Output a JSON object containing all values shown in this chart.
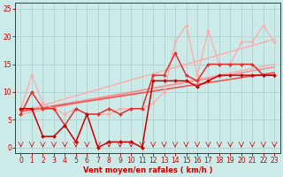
{
  "bg_color": "#cceae8",
  "grid_color": "#aad4d0",
  "xlabel": "Vent moyen/en rafales ( km/h )",
  "xlabel_color": "#cc0000",
  "tick_color": "#cc0000",
  "xlim": [
    -0.5,
    23.5
  ],
  "ylim": [
    -1,
    26
  ],
  "xticks": [
    0,
    1,
    2,
    3,
    4,
    5,
    6,
    7,
    8,
    9,
    10,
    11,
    12,
    13,
    14,
    15,
    16,
    17,
    18,
    19,
    20,
    21,
    22,
    23
  ],
  "yticks": [
    0,
    5,
    10,
    15,
    20,
    25
  ],
  "lines": [
    {
      "x": [
        0,
        23
      ],
      "y": [
        6.5,
        19.5
      ],
      "color": "#ffaaaa",
      "lw": 1.0,
      "marker": null,
      "zorder": 2
    },
    {
      "x": [
        0,
        23
      ],
      "y": [
        6.0,
        15.0
      ],
      "color": "#ffaaaa",
      "lw": 1.0,
      "marker": null,
      "zorder": 2
    },
    {
      "x": [
        0,
        23
      ],
      "y": [
        6.5,
        14.5
      ],
      "color": "#ff8888",
      "lw": 1.0,
      "marker": null,
      "zorder": 2
    },
    {
      "x": [
        0,
        23
      ],
      "y": [
        6.5,
        13.5
      ],
      "color": "#ee5555",
      "lw": 1.2,
      "marker": null,
      "zorder": 2
    },
    {
      "x": [
        0,
        1,
        2,
        3,
        4,
        5,
        6,
        7,
        8,
        9,
        10,
        11,
        12,
        13,
        14,
        15,
        16,
        17,
        18,
        19,
        20,
        21,
        22,
        23
      ],
      "y": [
        7,
        13,
        8,
        7,
        6,
        7,
        6,
        6,
        6,
        7,
        7,
        7,
        8,
        10,
        19,
        22,
        13,
        21,
        15,
        15,
        19,
        19,
        22,
        19
      ],
      "color": "#ffaaaa",
      "lw": 0.9,
      "marker": "D",
      "markersize": 2.0,
      "zorder": 3
    },
    {
      "x": [
        0,
        1,
        2,
        3,
        4,
        5,
        6,
        7,
        8,
        9,
        10,
        11,
        12,
        13,
        14,
        15,
        16,
        17,
        18,
        19,
        20,
        21,
        22,
        23
      ],
      "y": [
        6,
        10,
        7,
        7,
        4,
        7,
        6,
        6,
        7,
        6,
        7,
        7,
        13,
        13,
        17,
        13,
        12,
        15,
        15,
        15,
        15,
        15,
        13,
        13
      ],
      "color": "#dd3333",
      "lw": 1.1,
      "marker": "D",
      "markersize": 2.0,
      "zorder": 4
    },
    {
      "x": [
        0,
        1,
        2,
        3,
        4,
        5,
        6,
        7,
        8,
        9,
        10,
        11,
        12,
        13,
        14,
        15,
        16,
        17,
        18,
        19,
        20,
        21,
        22,
        23
      ],
      "y": [
        7,
        7,
        2,
        2,
        4,
        1,
        6,
        0,
        1,
        1,
        1,
        0,
        12,
        12,
        12,
        12,
        11,
        12,
        13,
        13,
        13,
        13,
        13,
        13
      ],
      "color": "#cc0000",
      "lw": 1.1,
      "marker": "D",
      "markersize": 2.0,
      "zorder": 4
    }
  ],
  "arrow_color": "#cc0000"
}
